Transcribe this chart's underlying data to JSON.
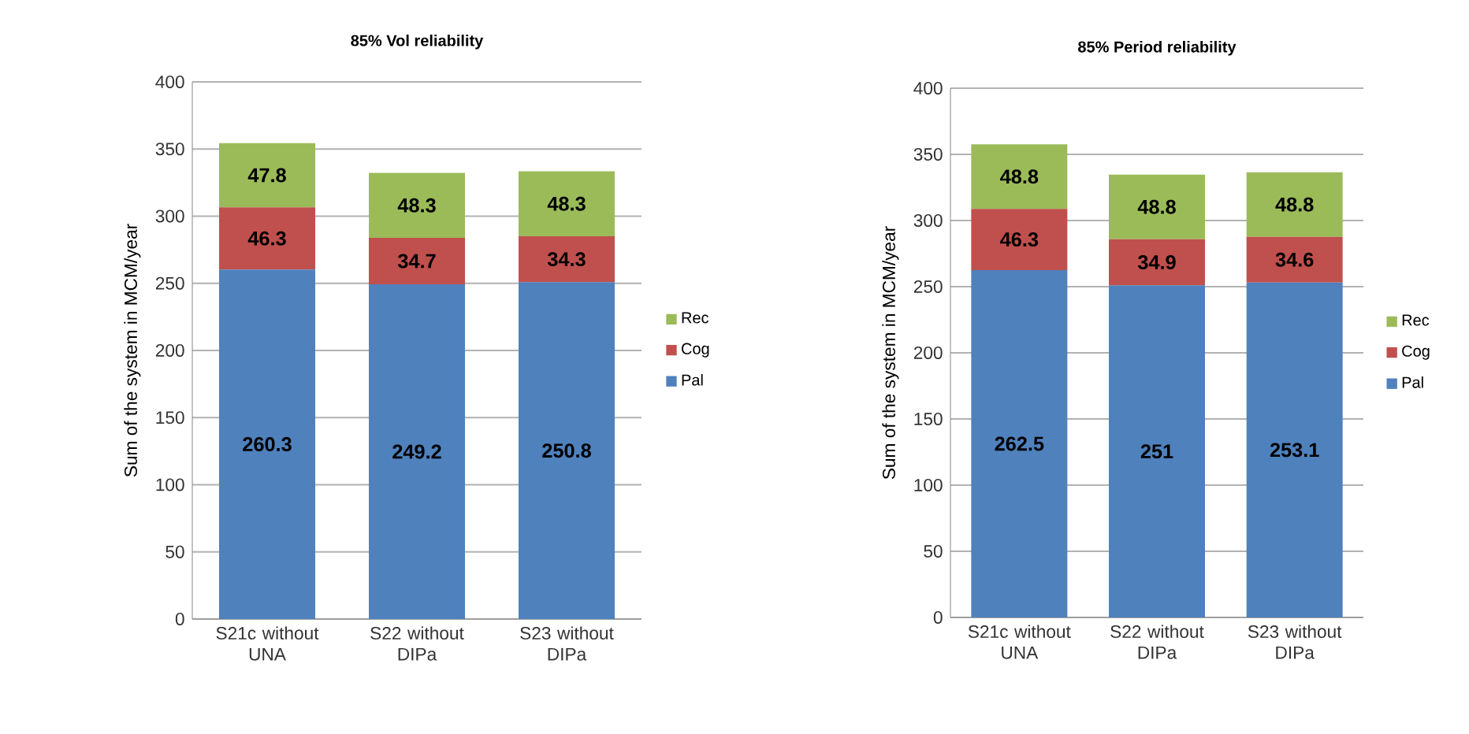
{
  "chart_data": [
    {
      "type": "bar",
      "title": "85% Vol reliability",
      "ylabel": "Sum of the system in MCM/year",
      "categories": [
        "S21c without UNA",
        "S22 without DIPa",
        "S23 without DIPa"
      ],
      "stacked": true,
      "ylim": [
        0,
        400
      ],
      "yticks": [
        0,
        50,
        100,
        150,
        200,
        250,
        300,
        350,
        400
      ],
      "grid": "y",
      "legend": "right",
      "data_labels": true,
      "series": [
        {
          "name": "Pal",
          "color": "#4f81bd",
          "values": [
            260.3,
            249.2,
            250.8
          ]
        },
        {
          "name": "Cog",
          "color": "#c0504d",
          "values": [
            46.3,
            34.7,
            34.3
          ]
        },
        {
          "name": "Rec",
          "color": "#9bbb59",
          "values": [
            47.8,
            48.3,
            48.3
          ]
        }
      ]
    },
    {
      "type": "bar",
      "title": "85% Period reliability",
      "ylabel": "Sum of the system in MCM/year",
      "categories": [
        "S21c without UNA",
        "S22 without DIPa",
        "S23 without DIPa"
      ],
      "stacked": true,
      "ylim": [
        0,
        400
      ],
      "yticks": [
        0,
        50,
        100,
        150,
        200,
        250,
        300,
        350,
        400
      ],
      "grid": "y",
      "legend": "right",
      "data_labels": true,
      "series": [
        {
          "name": "Pal",
          "color": "#4f81bd",
          "values": [
            262.5,
            251,
            253.1
          ]
        },
        {
          "name": "Cog",
          "color": "#c0504d",
          "values": [
            46.3,
            34.9,
            34.6
          ]
        },
        {
          "name": "Rec",
          "color": "#9bbb59",
          "values": [
            48.8,
            48.8,
            48.8
          ]
        }
      ]
    }
  ]
}
